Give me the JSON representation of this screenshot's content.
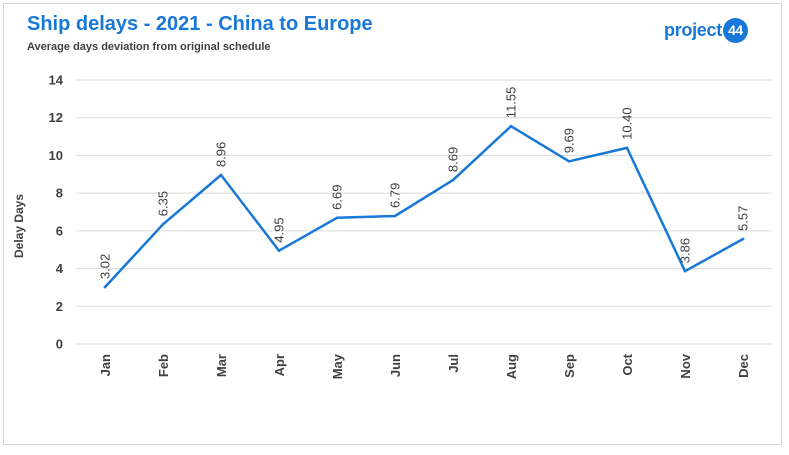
{
  "header": {
    "title": "Ship delays - 2021 - China to Europe",
    "subtitle": "Average days deviation from original schedule",
    "logo_text": "project",
    "logo_badge": "44"
  },
  "colors": {
    "accent": "#1878d8",
    "line": "#1878d8",
    "grid": "#d9d9d9",
    "text": "#404040"
  },
  "chart_data": {
    "type": "line",
    "title": "Ship delays - 2021 - China to Europe",
    "subtitle": "Average days deviation from original schedule",
    "xlabel": "",
    "ylabel": "Delay Days",
    "categories": [
      "Jan",
      "Feb",
      "Mar",
      "Apr",
      "May",
      "Jun",
      "Jul",
      "Aug",
      "Sep",
      "Oct",
      "Nov",
      "Dec"
    ],
    "values": [
      3.02,
      6.35,
      8.96,
      4.95,
      6.69,
      6.79,
      8.69,
      11.55,
      9.69,
      10.4,
      3.86,
      5.57
    ],
    "data_labels": [
      "3.02",
      "6.35",
      "8.96",
      "4.95",
      "6.69",
      "6.79",
      "8.69",
      "11.55",
      "9.69",
      "10.40",
      "3.86",
      "5.57"
    ],
    "ylim": [
      0,
      14
    ],
    "yticks": [
      0,
      2,
      4,
      6,
      8,
      10,
      12,
      14
    ],
    "grid": true,
    "legend": "none"
  }
}
